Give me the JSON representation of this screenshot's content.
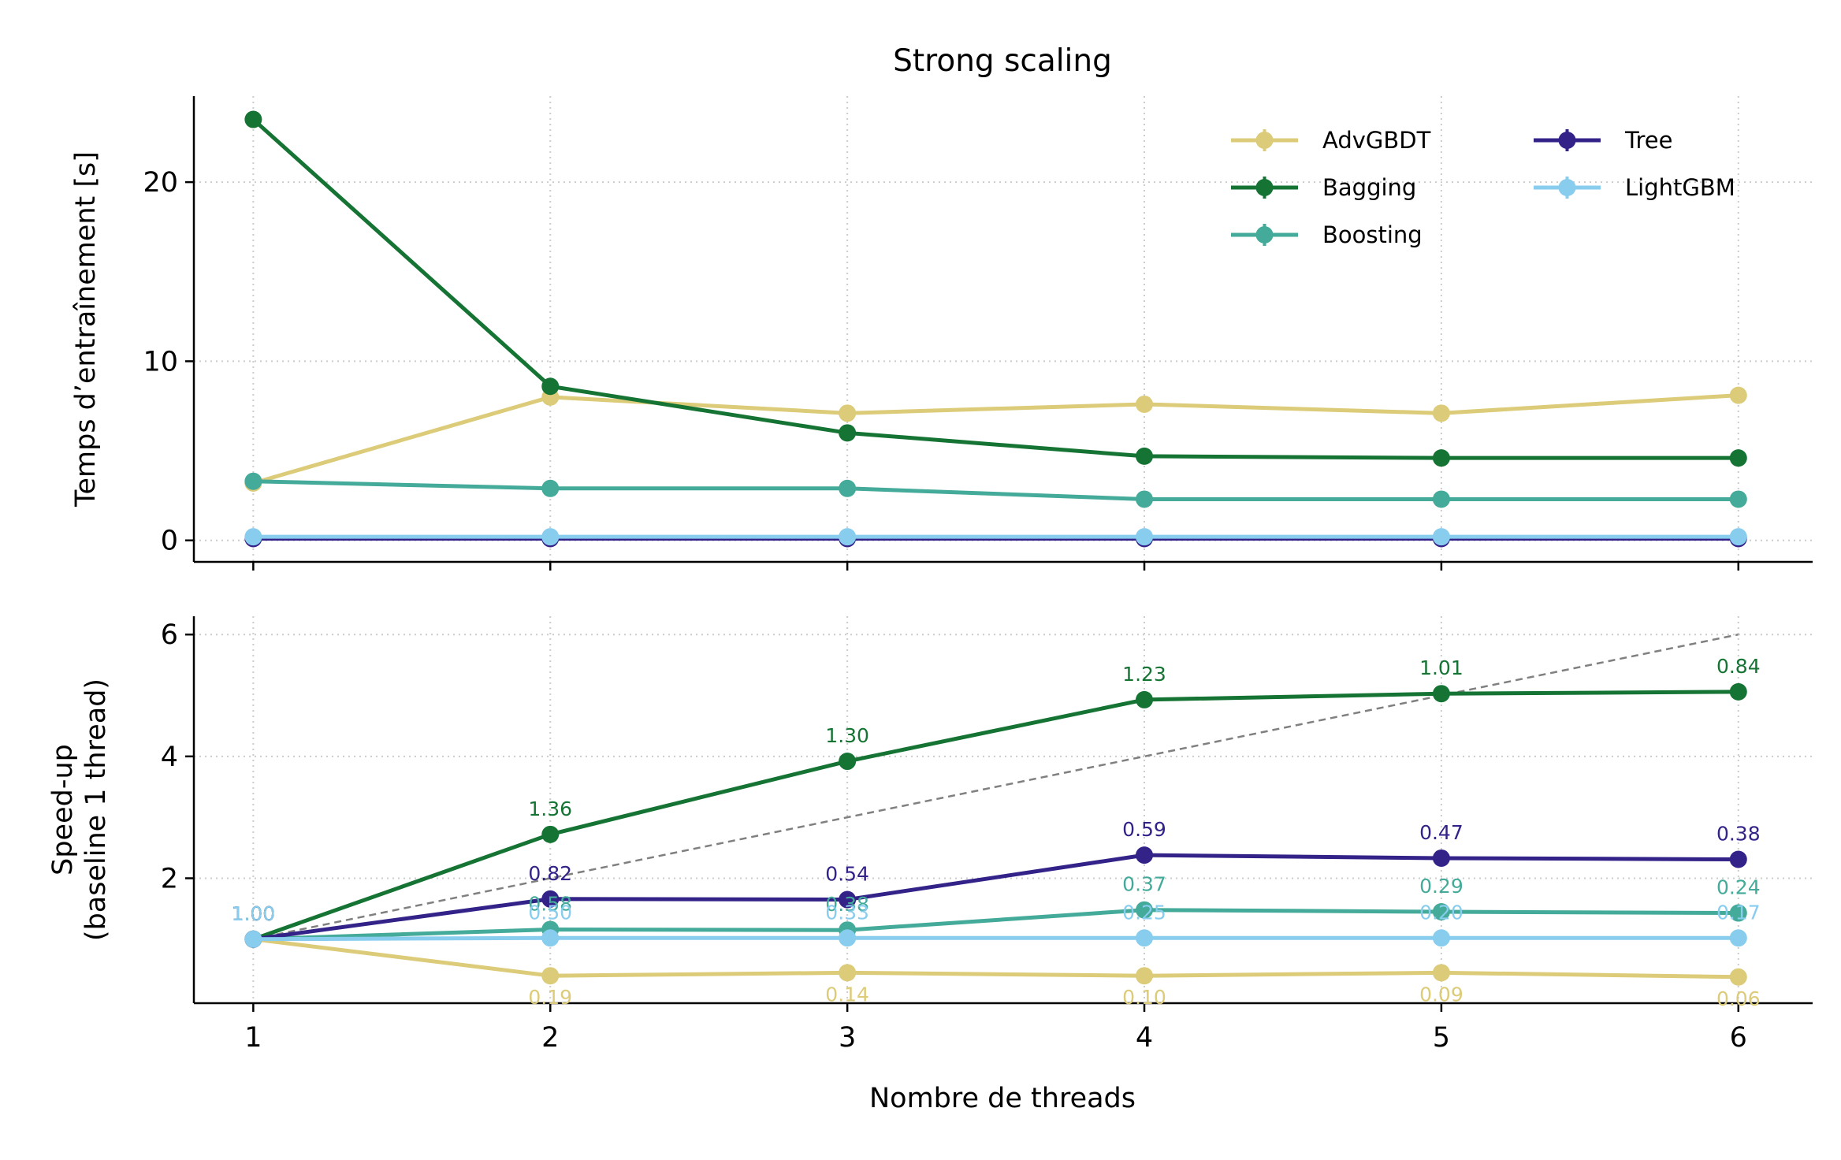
{
  "chart_data": {
    "title": "Strong scaling",
    "xlabel": "Nombre de threads",
    "x": [
      1,
      2,
      3,
      4,
      5,
      6
    ],
    "xlim": [
      0.8,
      6.25
    ],
    "grid": true,
    "legend": {
      "placement": "top-right",
      "columns": 2
    },
    "series": [
      {
        "name": "AdvGBDT",
        "color": "#dccb78"
      },
      {
        "name": "Bagging",
        "color": "#157434"
      },
      {
        "name": "Boosting",
        "color": "#44aa99"
      },
      {
        "name": "Tree",
        "color": "#332288"
      },
      {
        "name": "LightGBM",
        "color": "#88ccee"
      }
    ],
    "panels": [
      {
        "type": "line",
        "ylabel": [
          "Temps d’entraînement [s]"
        ],
        "ylim": [
          -1.2,
          24.8
        ],
        "yticks": [
          0,
          10,
          20
        ],
        "values": {
          "AdvGBDT": [
            3.2,
            8.0,
            7.1,
            7.6,
            7.1,
            8.1
          ],
          "Bagging": [
            23.5,
            8.6,
            6.0,
            4.7,
            4.6,
            4.6
          ],
          "Boosting": [
            3.3,
            2.9,
            2.9,
            2.3,
            2.3,
            2.3
          ],
          "Tree": [
            0.1,
            0.1,
            0.1,
            0.1,
            0.1,
            0.1
          ],
          "LightGBM": [
            0.2,
            0.2,
            0.2,
            0.2,
            0.2,
            0.2
          ]
        }
      },
      {
        "type": "line",
        "ylabel": [
          "Speed-up",
          "(baseline 1 thread)"
        ],
        "ylim": [
          -0.05,
          6.3
        ],
        "yticks": [
          2,
          4,
          6
        ],
        "ideal_line": {
          "x": [
            1,
            6
          ],
          "y": [
            1,
            6
          ],
          "style": "dashed",
          "color": "#808080"
        },
        "values": {
          "AdvGBDT": [
            1.0,
            0.4,
            0.45,
            0.4,
            0.45,
            0.38
          ],
          "Bagging": [
            1.0,
            2.72,
            3.92,
            4.93,
            5.03,
            5.06
          ],
          "Boosting": [
            1.0,
            1.16,
            1.15,
            1.48,
            1.45,
            1.43
          ],
          "Tree": [
            1.0,
            1.66,
            1.65,
            2.38,
            2.33,
            2.31
          ],
          "LightGBM": [
            1.0,
            1.02,
            1.02,
            1.02,
            1.02,
            1.02
          ]
        },
        "annotations": [
          {
            "text": "1.00",
            "series": "AdvGBDT",
            "x": 1,
            "offset": "above"
          },
          {
            "text": "1.00",
            "series": "Bagging",
            "x": 1,
            "offset": "above"
          },
          {
            "text": "1.00",
            "series": "Boosting",
            "x": 1,
            "offset": "above"
          },
          {
            "text": "1.00",
            "series": "Tree",
            "x": 1,
            "offset": "above"
          },
          {
            "text": "1.00",
            "series": "LightGBM",
            "x": 1,
            "offset": "above"
          },
          {
            "text": "1.36",
            "series": "Bagging",
            "x": 2,
            "offset": "above"
          },
          {
            "text": "1.30",
            "series": "Bagging",
            "x": 3,
            "offset": "above"
          },
          {
            "text": "1.23",
            "series": "Bagging",
            "x": 4,
            "offset": "above"
          },
          {
            "text": "1.01",
            "series": "Bagging",
            "x": 5,
            "offset": "above"
          },
          {
            "text": "0.84",
            "series": "Bagging",
            "x": 6,
            "offset": "above"
          },
          {
            "text": "0.82",
            "series": "Tree",
            "x": 2,
            "offset": "above"
          },
          {
            "text": "0.54",
            "series": "Tree",
            "x": 3,
            "offset": "above"
          },
          {
            "text": "0.59",
            "series": "Tree",
            "x": 4,
            "offset": "above"
          },
          {
            "text": "0.47",
            "series": "Tree",
            "x": 5,
            "offset": "above"
          },
          {
            "text": "0.38",
            "series": "Tree",
            "x": 6,
            "offset": "above"
          },
          {
            "text": "0.58",
            "series": "Boosting",
            "x": 2,
            "offset": "above"
          },
          {
            "text": "0.38",
            "series": "Boosting",
            "x": 3,
            "offset": "above"
          },
          {
            "text": "0.37",
            "series": "Boosting",
            "x": 4,
            "offset": "above"
          },
          {
            "text": "0.29",
            "series": "Boosting",
            "x": 5,
            "offset": "above"
          },
          {
            "text": "0.24",
            "series": "Boosting",
            "x": 6,
            "offset": "above"
          },
          {
            "text": "0.50",
            "series": "LightGBM",
            "x": 2,
            "offset": "above"
          },
          {
            "text": "0.33",
            "series": "LightGBM",
            "x": 3,
            "offset": "above"
          },
          {
            "text": "0.25",
            "series": "LightGBM",
            "x": 4,
            "offset": "above"
          },
          {
            "text": "0.20",
            "series": "LightGBM",
            "x": 5,
            "offset": "above"
          },
          {
            "text": "0.17",
            "series": "LightGBM",
            "x": 6,
            "offset": "above"
          },
          {
            "text": "0.19",
            "series": "AdvGBDT",
            "x": 2,
            "offset": "below"
          },
          {
            "text": "0.14",
            "series": "AdvGBDT",
            "x": 3,
            "offset": "below"
          },
          {
            "text": "0.10",
            "series": "AdvGBDT",
            "x": 4,
            "offset": "below"
          },
          {
            "text": "0.09",
            "series": "AdvGBDT",
            "x": 5,
            "offset": "below"
          },
          {
            "text": "0.06",
            "series": "AdvGBDT",
            "x": 6,
            "offset": "below"
          }
        ]
      }
    ]
  }
}
